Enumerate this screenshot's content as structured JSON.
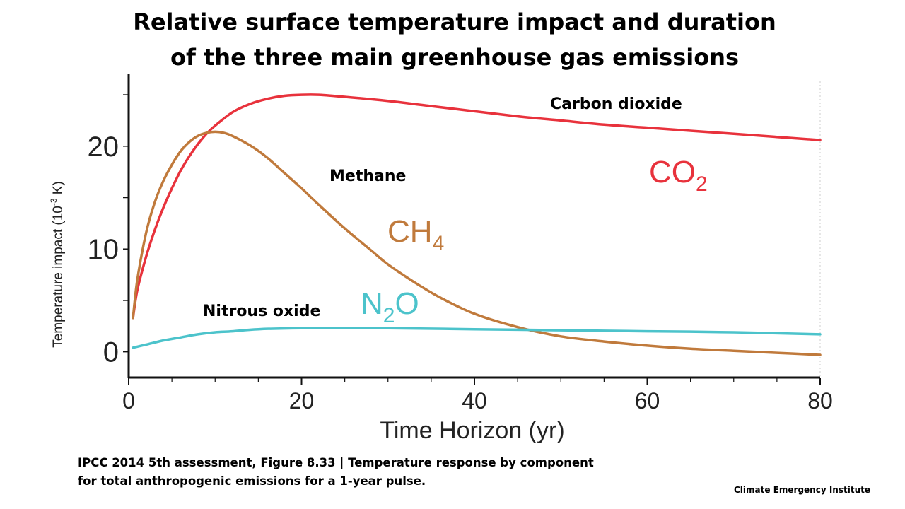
{
  "title_line1": "Relative surface temperature impact and duration",
  "title_line2": "of the three main greenhouse gas emissions",
  "caption_line1": "IPCC 2014 5th assessment, Figure 8.33 | Temperature response by component",
  "caption_line2": "for total anthropogenic emissions for a 1-year pulse.",
  "credit": "Climate Emergency Institute",
  "colors": {
    "co2": "#e8323c",
    "ch4": "#c07a3c",
    "n2o": "#4cc3cb"
  },
  "chart_data": {
    "type": "line",
    "xlabel": "Time Horizon (yr)",
    "ylabel": "Temperature impact (10",
    "ylabel_sup": "-3",
    "ylabel_tail": " K)",
    "xlim": [
      0,
      80
    ],
    "ylim": [
      -2.5,
      27
    ],
    "xticks": [
      0,
      20,
      40,
      60,
      80
    ],
    "yticks": [
      0,
      10,
      20
    ],
    "grid": false,
    "series": [
      {
        "key": "co2",
        "name": "Carbon dioxide",
        "formula": "CO",
        "subscript": "2",
        "x": [
          0.5,
          1,
          2,
          3,
          4,
          5,
          6,
          7,
          8,
          9,
          10,
          12,
          14,
          16,
          18,
          20,
          22,
          25,
          30,
          35,
          40,
          45,
          50,
          55,
          60,
          65,
          70,
          75,
          80
        ],
        "y": [
          3.3,
          6.0,
          9.2,
          11.8,
          14.0,
          15.9,
          17.6,
          19.0,
          20.2,
          21.2,
          22.0,
          23.3,
          24.1,
          24.6,
          24.9,
          25.0,
          25.0,
          24.8,
          24.4,
          23.9,
          23.4,
          22.9,
          22.5,
          22.1,
          21.8,
          21.5,
          21.2,
          20.9,
          20.6
        ]
      },
      {
        "key": "ch4",
        "name": "Methane",
        "formula": "CH",
        "subscript": "4",
        "x": [
          0.5,
          1,
          2,
          3,
          4,
          5,
          6,
          7,
          8,
          9,
          10,
          11,
          12,
          14,
          16,
          18,
          20,
          22,
          25,
          28,
          30,
          33,
          36,
          40,
          45,
          50,
          55,
          60,
          65,
          70,
          75,
          80
        ],
        "y": [
          3.3,
          7.0,
          11.5,
          14.5,
          16.6,
          18.2,
          19.5,
          20.4,
          21.0,
          21.3,
          21.4,
          21.3,
          21.0,
          20.1,
          18.9,
          17.4,
          15.9,
          14.3,
          12.0,
          9.9,
          8.5,
          6.8,
          5.3,
          3.7,
          2.4,
          1.5,
          1.0,
          0.6,
          0.3,
          0.1,
          -0.1,
          -0.3
        ]
      },
      {
        "key": "n2o",
        "name": "Nitrous oxide",
        "formula": "N",
        "subscript": "2",
        "formula_tail": "O",
        "x": [
          0.5,
          2,
          4,
          6,
          8,
          10,
          12,
          15,
          20,
          25,
          30,
          40,
          50,
          60,
          70,
          80
        ],
        "y": [
          0.4,
          0.7,
          1.1,
          1.4,
          1.7,
          1.9,
          2.0,
          2.2,
          2.3,
          2.3,
          2.3,
          2.2,
          2.1,
          2.0,
          1.9,
          1.7
        ]
      }
    ]
  }
}
